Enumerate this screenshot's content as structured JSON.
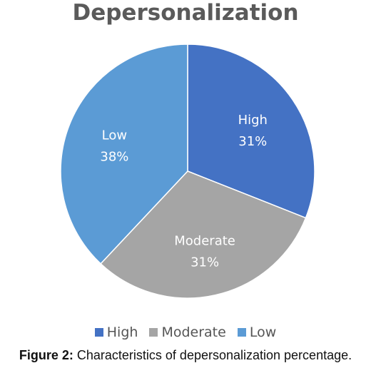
{
  "chart_data": {
    "type": "pie",
    "title": "Depersonalization",
    "categories": [
      "High",
      "Moderate",
      "Low"
    ],
    "values": [
      31,
      31,
      38
    ],
    "labels": [
      "31%",
      "31%",
      "38%"
    ],
    "colors": [
      "#4472c4",
      "#a5a5a5",
      "#5b9bd5"
    ],
    "legend": {
      "position": "bottom",
      "entries": [
        "High",
        "Moderate",
        "Low"
      ]
    }
  },
  "caption": {
    "prefix": "Figure 2:",
    "text": " Characteristics of depersonalization percentage."
  }
}
